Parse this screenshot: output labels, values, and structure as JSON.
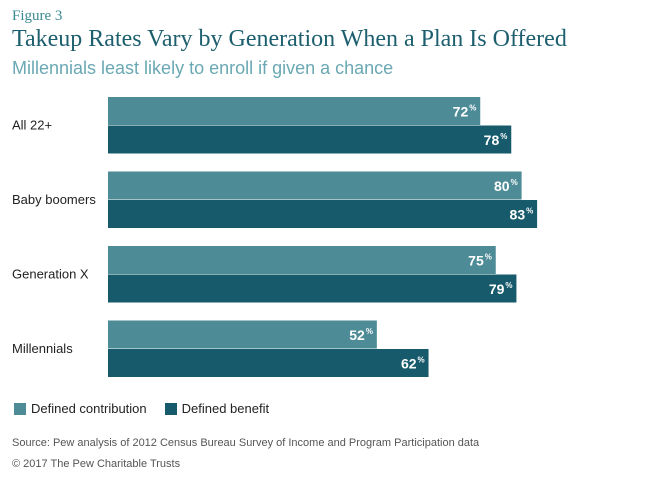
{
  "figure_label": "Figure 3",
  "chart_data": {
    "type": "bar",
    "orientation": "horizontal",
    "title": "Takeup Rates Vary by Generation When a Plan Is Offered",
    "subtitle": "Millennials least likely to enroll if given a chance",
    "categories": [
      "All 22+",
      "Baby boomers",
      "Generation X",
      "Millennials"
    ],
    "series": [
      {
        "name": "Defined contribution",
        "values": [
          72,
          80,
          75,
          52
        ],
        "color": "#4d8b97"
      },
      {
        "name": "Defined benefit",
        "values": [
          78,
          83,
          79,
          62
        ],
        "color": "#165a6b"
      }
    ],
    "value_suffix": "%",
    "xlim": [
      0,
      100
    ],
    "legend_position": "bottom-left",
    "grid": false
  },
  "source": "Source: Pew analysis of 2012 Census Bureau Survey of Income and Program Participation data",
  "copyright": "© 2017 The Pew Charitable Trusts"
}
